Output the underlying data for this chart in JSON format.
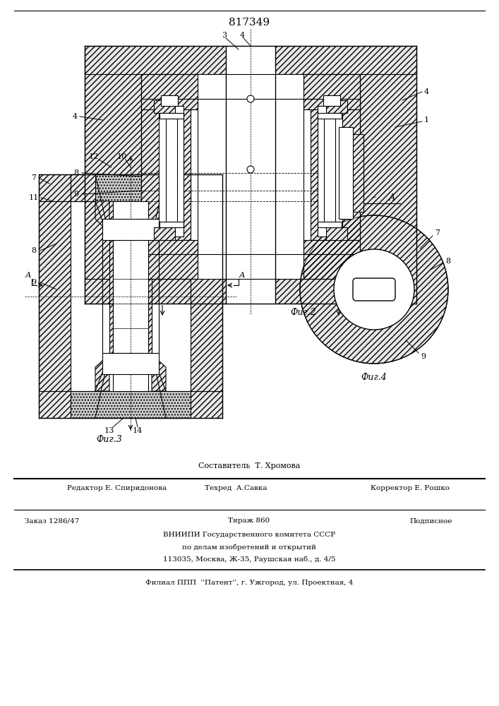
{
  "patent_number": "817349",
  "bg": "#ffffff",
  "hatch_fc": "#e8e8e8",
  "dot_fc": "#cccccc",
  "footer": {
    "line1": "Составитель  Т. Хромова",
    "line2a": "Редактор Е. Спиридонова",
    "line2b": "Техред  А.Савка",
    "line2c": "Корректор Е. Рошко",
    "line3a": "Заказ 1286/47",
    "line3b": "Тираж 860",
    "line3c": "Подписное",
    "line4": "ВНИИПИ Государственного комитета СССР",
    "line5": "по делам изобретений и открытий",
    "line6": "113035, Москва, Ж-35, Раушская наб., д. 4/5",
    "line7": "Филиал ППП  ''Патент'', г. Ужгород, ул. Проектная, 4"
  }
}
